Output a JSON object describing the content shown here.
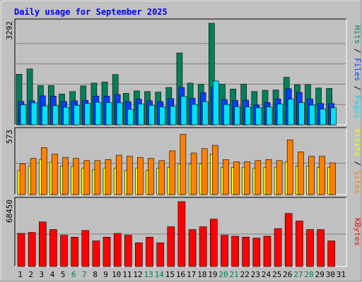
{
  "title": "Daily usage for September 2025",
  "colors": {
    "background": "#c0c0c0",
    "panel": "#c0c0c0",
    "title": "#0000ff",
    "hits": "#00805c",
    "files": "#0040ff",
    "pages": "#00e0ff",
    "visits": "#ffff00",
    "sites": "#ff8000",
    "kbytes": "#ff0000",
    "weekday_label": "#000000",
    "weekend_label": "#00805c",
    "grid": "#808080"
  },
  "side_labels": {
    "pages": "Pages",
    "files": "Files",
    "hits": "Hits",
    "visits": "Visits",
    "sites": "Sites",
    "kbytes": "KBytes",
    "separator": " / "
  },
  "chart_data": [
    {
      "type": "bar",
      "name": "hits-files-pages",
      "max_label": "3292",
      "ylim": [
        0,
        3292
      ],
      "categories": [
        "1",
        "2",
        "3",
        "4",
        "5",
        "6",
        "7",
        "8",
        "9",
        "10",
        "11",
        "12",
        "13",
        "14",
        "15",
        "16",
        "17",
        "18",
        "19",
        "20",
        "21",
        "22",
        "23",
        "24",
        "25",
        "26",
        "27",
        "28",
        "29",
        "30",
        "31"
      ],
      "weekend_days": [
        6,
        7,
        13,
        14,
        20,
        21,
        27,
        28
      ],
      "series": [
        {
          "name": "Hits",
          "values": [
            1640,
            1810,
            1270,
            1270,
            1000,
            1080,
            1260,
            1350,
            1390,
            1630,
            1020,
            1100,
            1080,
            1060,
            1210,
            2330,
            1350,
            1310,
            3292,
            1310,
            1160,
            1320,
            1080,
            1120,
            1130,
            1540,
            1300,
            1300,
            1190,
            1180,
            0
          ]
        },
        {
          "name": "Files",
          "values": [
            760,
            780,
            940,
            930,
            760,
            780,
            790,
            930,
            930,
            980,
            750,
            830,
            780,
            750,
            850,
            1210,
            860,
            1040,
            1230,
            820,
            790,
            800,
            640,
            720,
            840,
            1170,
            1050,
            840,
            690,
            690,
            0
          ]
        },
        {
          "name": "Pages",
          "values": [
            650,
            710,
            610,
            620,
            570,
            630,
            690,
            730,
            720,
            710,
            500,
            680,
            630,
            580,
            600,
            920,
            660,
            750,
            1420,
            660,
            590,
            580,
            550,
            580,
            670,
            830,
            720,
            640,
            510,
            550,
            0
          ]
        }
      ]
    },
    {
      "type": "bar",
      "name": "visits-sites",
      "max_label": "573",
      "ylim": [
        0,
        573
      ],
      "categories": [
        "1",
        "2",
        "3",
        "4",
        "5",
        "6",
        "7",
        "8",
        "9",
        "10",
        "11",
        "12",
        "13",
        "14",
        "15",
        "16",
        "17",
        "18",
        "19",
        "20",
        "21",
        "22",
        "23",
        "24",
        "25",
        "26",
        "27",
        "28",
        "29",
        "30",
        "31"
      ],
      "series": [
        {
          "name": "Visits",
          "values": [
            220,
            260,
            320,
            300,
            260,
            260,
            240,
            230,
            240,
            240,
            220,
            240,
            220,
            240,
            250,
            280,
            280,
            280,
            370,
            250,
            250,
            250,
            240,
            250,
            250,
            300,
            260,
            260,
            250,
            250,
            0
          ]
        },
        {
          "name": "Sites",
          "values": [
            280,
            330,
            430,
            370,
            340,
            330,
            310,
            310,
            320,
            360,
            350,
            340,
            330,
            310,
            400,
            550,
            380,
            420,
            450,
            320,
            300,
            300,
            310,
            320,
            310,
            500,
            390,
            350,
            350,
            290,
            0
          ]
        }
      ]
    },
    {
      "type": "bar",
      "name": "kbytes",
      "max_label": "68450",
      "ylim": [
        0,
        68450
      ],
      "categories": [
        "1",
        "2",
        "3",
        "4",
        "5",
        "6",
        "7",
        "8",
        "9",
        "10",
        "11",
        "12",
        "13",
        "14",
        "15",
        "16",
        "17",
        "18",
        "19",
        "20",
        "21",
        "22",
        "23",
        "24",
        "25",
        "26",
        "27",
        "28",
        "29",
        "30",
        "31"
      ],
      "series": [
        {
          "name": "KBytes",
          "values": [
            35000,
            36000,
            47000,
            39000,
            33000,
            31000,
            38000,
            27000,
            31000,
            35000,
            33000,
            25000,
            31000,
            25000,
            42000,
            68450,
            39000,
            42000,
            50000,
            33000,
            32000,
            31000,
            30000,
            32000,
            40000,
            56000,
            48000,
            39000,
            39000,
            27000,
            0
          ]
        }
      ]
    }
  ]
}
